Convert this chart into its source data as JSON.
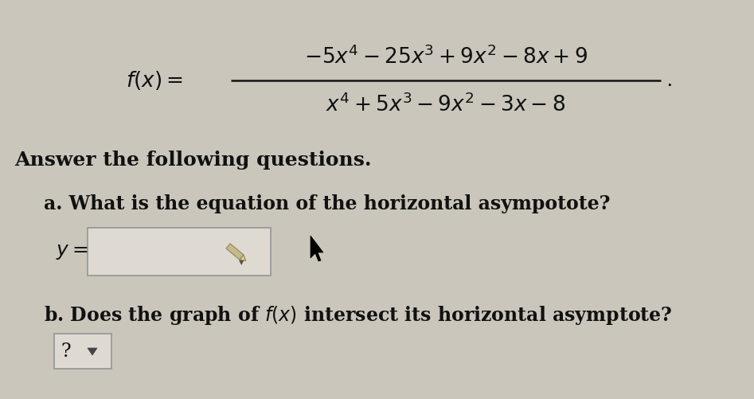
{
  "bg_color": "#cac6bc",
  "text_color": "#111111",
  "instruction": "Answer the following questions.",
  "question_a": "a. What is the equation of the horizontal asympotote?",
  "question_b_pre": "b. Does the graph of ",
  "question_b_post": " intersect its horizontal asymptote?",
  "label_y": "$y =$",
  "box_color": "#dedad2",
  "box_border": "#999999",
  "question_mark": "?",
  "font_size_formula": 19,
  "font_size_text": 17,
  "font_size_label": 17,
  "content_bg": "#e8e4da"
}
